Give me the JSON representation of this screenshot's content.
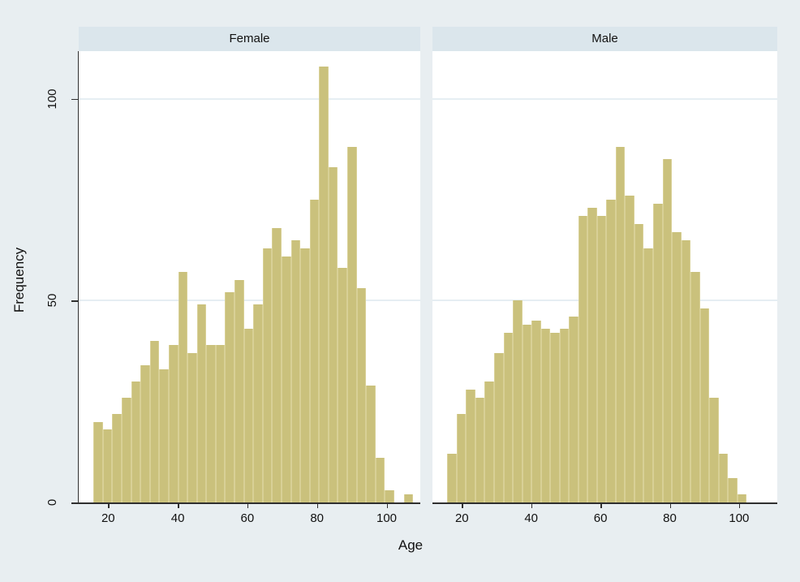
{
  "chart_data": {
    "type": "bar",
    "subtype": "faceted_histogram",
    "title": "",
    "xlabel": "Age",
    "ylabel": "Frequency",
    "x_ticks": [
      20,
      40,
      60,
      80,
      100
    ],
    "y_ticks": [
      0,
      50,
      100
    ],
    "xlim": [
      11.5,
      109.7
    ],
    "ylim": [
      0,
      112
    ],
    "grid": "horizontal gridlines at y=50 and y=100",
    "legend_position": "none",
    "bin_start_age": 15.8,
    "bin_width_years": 2.7,
    "panels": [
      {
        "title": "Female",
        "frequencies": [
          20,
          18,
          22,
          26,
          30,
          34,
          40,
          33,
          39,
          57,
          37,
          49,
          39,
          39,
          52,
          55,
          43,
          49,
          63,
          68,
          61,
          65,
          63,
          75,
          108,
          83,
          58,
          88,
          53,
          29,
          11,
          3,
          0,
          2
        ]
      },
      {
        "title": "Male",
        "frequencies": [
          12,
          22,
          28,
          26,
          30,
          37,
          42,
          50,
          44,
          45,
          43,
          42,
          43,
          46,
          71,
          73,
          71,
          75,
          88,
          76,
          69,
          63,
          74,
          85,
          67,
          65,
          57,
          48,
          26,
          12,
          6,
          2
        ]
      }
    ]
  },
  "colors": {
    "page_background": "#e8eef1",
    "panel_header_background": "#dbe6ec",
    "plot_background": "#ffffff",
    "bar_fill": "#cac17c",
    "bar_outline": "#d8d096",
    "gridline": "#e6eef3",
    "axis_line": "#2f2f2f",
    "text": "#111111"
  }
}
